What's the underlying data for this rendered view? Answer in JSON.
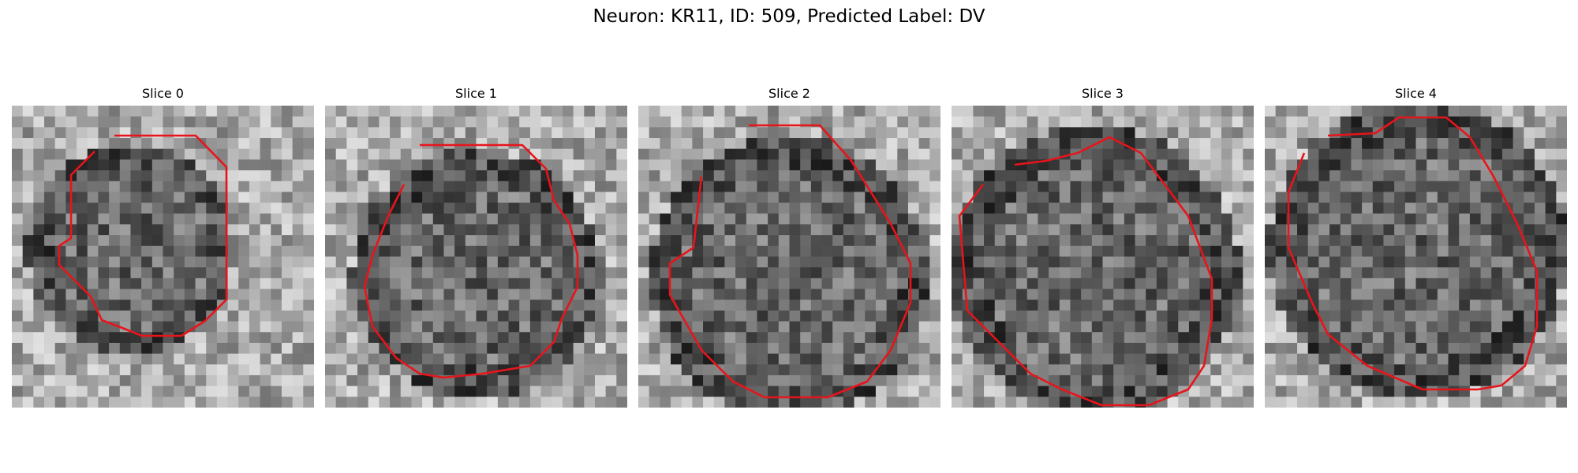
{
  "figure": {
    "title": "Neuron: KR11, ID: 509, Predicted Label: DV"
  },
  "slices": [
    {
      "title": "Slice 0"
    },
    {
      "title": "Slice 1"
    },
    {
      "title": "Slice 2"
    },
    {
      "title": "Slice 3"
    },
    {
      "title": "Slice 4"
    }
  ],
  "colors": {
    "contour": "#e8141b",
    "background": "#ffffff"
  }
}
